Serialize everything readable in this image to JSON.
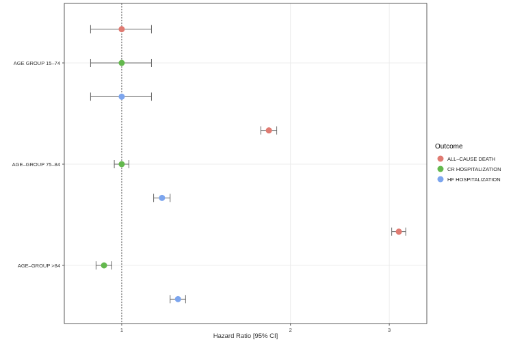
{
  "chart_data": {
    "type": "scatter",
    "subtype": "forest-plot",
    "xlabel": "Hazard Ratio [95% CI]",
    "x_scale": "log",
    "xlim": [
      0.79,
      3.5
    ],
    "x_ticks": [
      1,
      2,
      3
    ],
    "x_tick_labels": [
      "1",
      "2",
      "3"
    ],
    "reference_line": 1,
    "grid": true,
    "categories": [
      "AGE GROUP 15–74",
      "AGE–GROUP 75–84",
      "AGE–GROUP >84"
    ],
    "legend": {
      "title": "Outcome",
      "position": "right"
    },
    "series": [
      {
        "name": "ALL–CAUSE DEATH",
        "color": "#E07B72",
        "points": [
          {
            "category": "AGE GROUP 15–74",
            "hr": 1.0,
            "lo": 0.88,
            "hi": 1.13
          },
          {
            "category": "AGE–GROUP 75–84",
            "hr": 1.83,
            "lo": 1.77,
            "hi": 1.89
          },
          {
            "category": "AGE–GROUP >84",
            "hr": 3.12,
            "lo": 3.03,
            "hi": 3.21
          }
        ]
      },
      {
        "name": "CR HOSPITALIZATION",
        "color": "#63B84D",
        "points": [
          {
            "category": "AGE GROUP 15–74",
            "hr": 1.0,
            "lo": 0.88,
            "hi": 1.13
          },
          {
            "category": "AGE–GROUP 75–84",
            "hr": 1.0,
            "lo": 0.97,
            "hi": 1.03
          },
          {
            "category": "AGE–GROUP >84",
            "hr": 0.93,
            "lo": 0.9,
            "hi": 0.96
          }
        ]
      },
      {
        "name": "HF HOSPITALIZATION",
        "color": "#7CA5EE",
        "points": [
          {
            "category": "AGE GROUP 15–74",
            "hr": 1.0,
            "lo": 0.88,
            "hi": 1.13
          },
          {
            "category": "AGE–GROUP 75–84",
            "hr": 1.18,
            "lo": 1.14,
            "hi": 1.22
          },
          {
            "category": "AGE–GROUP >84",
            "hr": 1.26,
            "lo": 1.22,
            "hi": 1.3
          }
        ]
      }
    ]
  }
}
